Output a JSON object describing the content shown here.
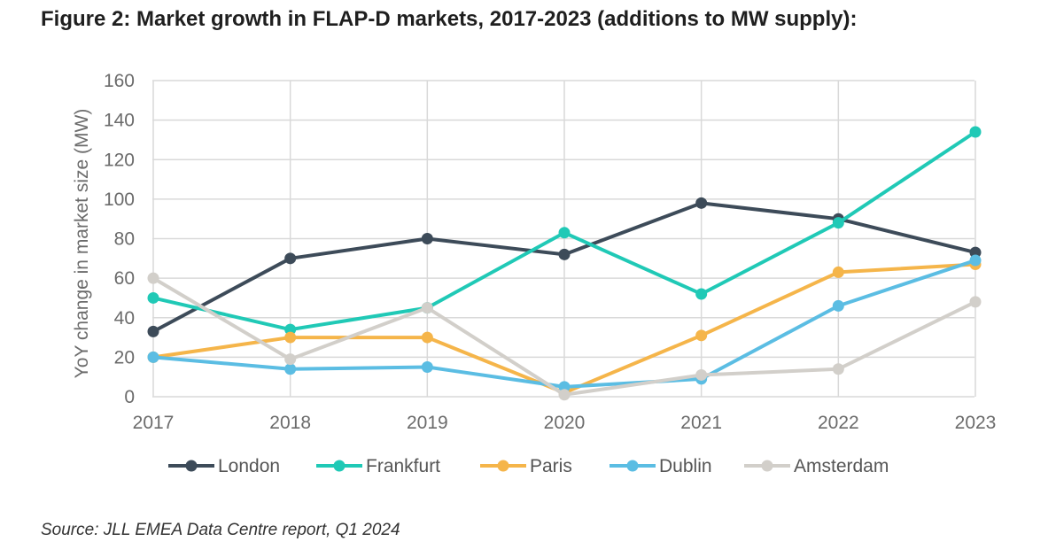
{
  "title": "Figure 2: Market growth in FLAP-D markets, 2017-2023 (additions to MW supply):",
  "source": "Source: JLL EMEA Data Centre report, Q1 2024",
  "chart_data": {
    "type": "line",
    "title": "Figure 2: Market growth in FLAP-D markets, 2017-2023 (additions to MW supply):",
    "xlabel": "",
    "ylabel": "YoY change in market size (MW)",
    "categories": [
      "2017",
      "2018",
      "2019",
      "2020",
      "2021",
      "2022",
      "2023"
    ],
    "ylim": [
      0,
      160
    ],
    "yticks": [
      0,
      20,
      40,
      60,
      80,
      100,
      120,
      140,
      160
    ],
    "grid": true,
    "legend_position": "bottom",
    "series": [
      {
        "name": "London",
        "color": "#3d4b59",
        "values": [
          33,
          70,
          80,
          72,
          98,
          90,
          73
        ]
      },
      {
        "name": "Frankfurt",
        "color": "#20c9b6",
        "values": [
          50,
          34,
          45,
          83,
          52,
          88,
          134
        ]
      },
      {
        "name": "Paris",
        "color": "#f5b54a",
        "values": [
          20,
          30,
          30,
          2,
          31,
          63,
          67
        ]
      },
      {
        "name": "Dublin",
        "color": "#5bbde3",
        "values": [
          20,
          14,
          15,
          5,
          9,
          46,
          69
        ]
      },
      {
        "name": "Amsterdam",
        "color": "#d2cfca",
        "values": [
          60,
          19,
          45,
          1,
          11,
          14,
          48
        ]
      }
    ]
  }
}
